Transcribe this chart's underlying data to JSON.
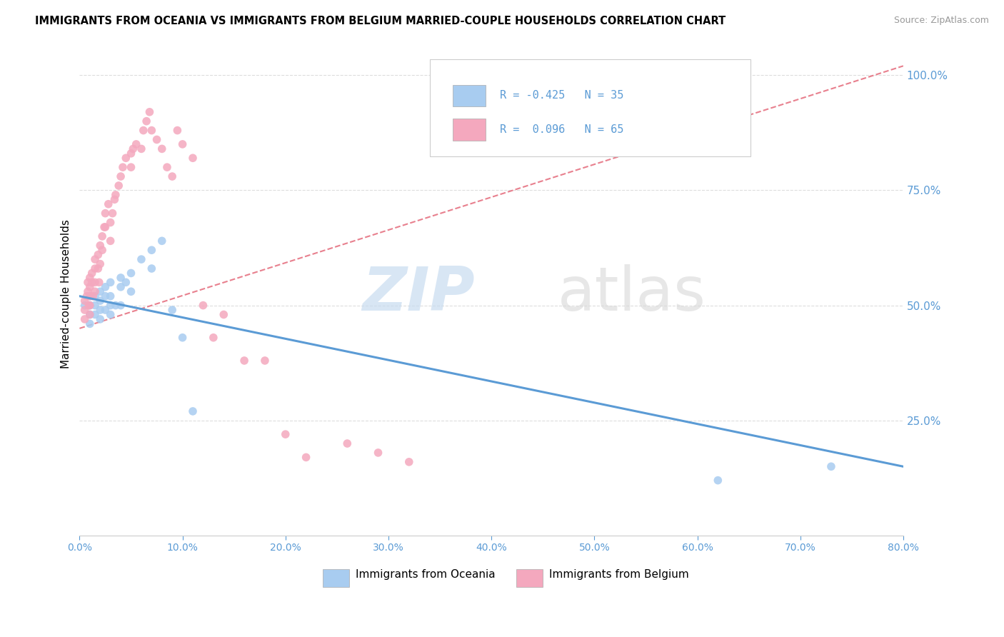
{
  "title": "IMMIGRANTS FROM OCEANIA VS IMMIGRANTS FROM BELGIUM MARRIED-COUPLE HOUSEHOLDS CORRELATION CHART",
  "source": "Source: ZipAtlas.com",
  "ylabel": "Married-couple Households",
  "ylabel_right_labels": [
    "100.0%",
    "75.0%",
    "50.0%",
    "25.0%"
  ],
  "ylabel_right_values": [
    1.0,
    0.75,
    0.5,
    0.25
  ],
  "color_oceania": "#a8ccf0",
  "color_belgium": "#f4a8be",
  "line_color_oceania": "#5b9bd5",
  "line_color_belgium": "#e8808e",
  "xmin": 0.0,
  "xmax": 0.8,
  "ymin": 0.0,
  "ymax": 1.05,
  "oceania_x": [
    0.005,
    0.01,
    0.01,
    0.01,
    0.01,
    0.015,
    0.015,
    0.015,
    0.02,
    0.02,
    0.02,
    0.02,
    0.025,
    0.025,
    0.025,
    0.03,
    0.03,
    0.03,
    0.03,
    0.035,
    0.04,
    0.04,
    0.04,
    0.045,
    0.05,
    0.05,
    0.06,
    0.07,
    0.07,
    0.08,
    0.09,
    0.1,
    0.11,
    0.62,
    0.73
  ],
  "oceania_y": [
    0.5,
    0.52,
    0.5,
    0.48,
    0.46,
    0.52,
    0.5,
    0.48,
    0.53,
    0.51,
    0.49,
    0.47,
    0.54,
    0.52,
    0.49,
    0.55,
    0.52,
    0.5,
    0.48,
    0.5,
    0.56,
    0.54,
    0.5,
    0.55,
    0.57,
    0.53,
    0.6,
    0.62,
    0.58,
    0.64,
    0.49,
    0.43,
    0.27,
    0.12,
    0.15
  ],
  "belgium_x": [
    0.005,
    0.005,
    0.005,
    0.007,
    0.008,
    0.008,
    0.009,
    0.01,
    0.01,
    0.01,
    0.01,
    0.01,
    0.012,
    0.012,
    0.013,
    0.015,
    0.015,
    0.015,
    0.015,
    0.018,
    0.018,
    0.019,
    0.02,
    0.02,
    0.022,
    0.022,
    0.024,
    0.025,
    0.025,
    0.028,
    0.03,
    0.03,
    0.032,
    0.034,
    0.035,
    0.038,
    0.04,
    0.042,
    0.045,
    0.05,
    0.05,
    0.052,
    0.055,
    0.06,
    0.062,
    0.065,
    0.068,
    0.07,
    0.075,
    0.08,
    0.085,
    0.09,
    0.095,
    0.1,
    0.11,
    0.12,
    0.13,
    0.14,
    0.16,
    0.18,
    0.2,
    0.22,
    0.26,
    0.29,
    0.32
  ],
  "belgium_y": [
    0.51,
    0.49,
    0.47,
    0.52,
    0.55,
    0.53,
    0.5,
    0.56,
    0.54,
    0.52,
    0.5,
    0.48,
    0.57,
    0.55,
    0.52,
    0.6,
    0.58,
    0.55,
    0.53,
    0.61,
    0.58,
    0.55,
    0.63,
    0.59,
    0.65,
    0.62,
    0.67,
    0.7,
    0.67,
    0.72,
    0.68,
    0.64,
    0.7,
    0.73,
    0.74,
    0.76,
    0.78,
    0.8,
    0.82,
    0.83,
    0.8,
    0.84,
    0.85,
    0.84,
    0.88,
    0.9,
    0.92,
    0.88,
    0.86,
    0.84,
    0.8,
    0.78,
    0.88,
    0.85,
    0.82,
    0.5,
    0.43,
    0.48,
    0.38,
    0.38,
    0.22,
    0.17,
    0.2,
    0.18,
    0.16
  ],
  "oceania_trendline": [
    -0.425,
    35
  ],
  "belgium_trendline": [
    0.096,
    65
  ],
  "watermark_zip_color": "#c8dcf0",
  "watermark_atlas_color": "#d8d8d8",
  "grid_color": "#dddddd",
  "background_color": "#ffffff"
}
